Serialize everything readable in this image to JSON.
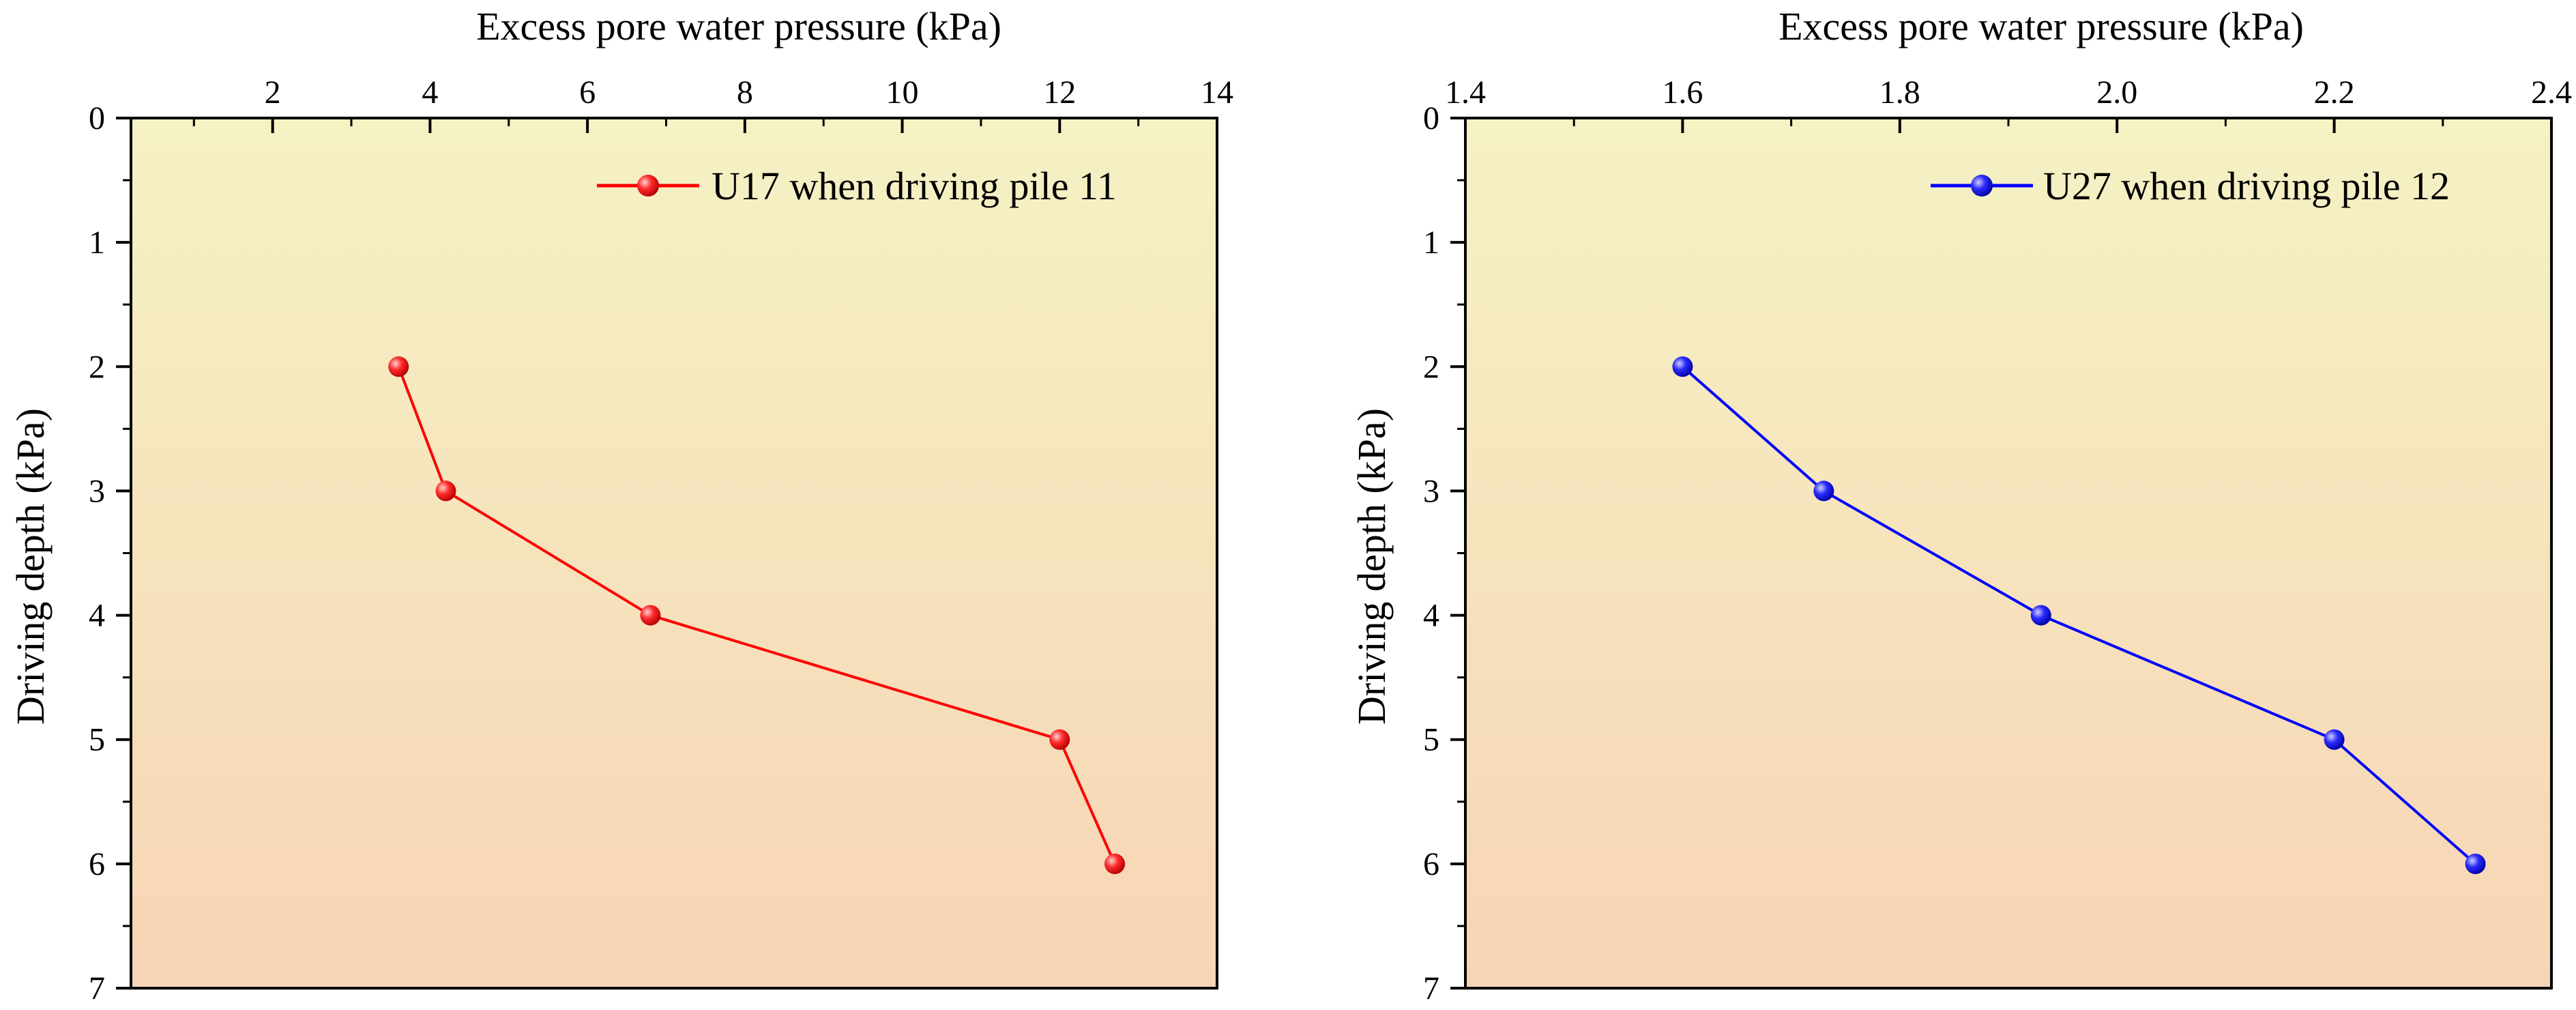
{
  "chart_data": [
    {
      "type": "line",
      "xlabel": "Excess pore water pressure (kPa)",
      "ylabel": "Driving depth (kPa)",
      "xlim": [
        0.2,
        14
      ],
      "ylim": [
        0,
        7
      ],
      "xticks": [
        2,
        4,
        6,
        8,
        10,
        12,
        14
      ],
      "xtick_labels": [
        "2",
        "4",
        "6",
        "8",
        "10",
        "12",
        "14"
      ],
      "yticks": [
        0,
        1,
        2,
        3,
        4,
        5,
        6,
        7
      ],
      "ytick_labels": [
        "0",
        "1",
        "2",
        "3",
        "4",
        "5",
        "6",
        "7"
      ],
      "x_axis_position": "top",
      "y_inverted": true,
      "grid": false,
      "legend_position": "top-right",
      "series": [
        {
          "name": "U17 when driving pile 11",
          "color": "#ff0000",
          "x": [
            3.6,
            4.2,
            6.8,
            12.0,
            12.7
          ],
          "y": [
            2,
            3,
            4,
            5,
            6
          ]
        }
      ]
    },
    {
      "type": "line",
      "xlabel": "Excess pore water pressure (kPa)",
      "ylabel": "Driving depth (kPa)",
      "xlim": [
        1.4,
        2.4
      ],
      "ylim": [
        0,
        7
      ],
      "xticks": [
        1.4,
        1.6,
        1.8,
        2.0,
        2.2,
        2.4
      ],
      "xtick_labels": [
        "1.4",
        "1.6",
        "1.8",
        "2.0",
        "2.2",
        "2.4"
      ],
      "yticks": [
        0,
        1,
        2,
        3,
        4,
        5,
        6,
        7
      ],
      "ytick_labels": [
        "0",
        "1",
        "2",
        "3",
        "4",
        "5",
        "6",
        "7"
      ],
      "x_axis_position": "top",
      "y_inverted": true,
      "grid": false,
      "legend_position": "top-right",
      "series": [
        {
          "name": "U27 when driving pile 12",
          "color": "#0000ff",
          "x": [
            1.6,
            1.73,
            1.93,
            2.2,
            2.33
          ],
          "y": [
            2,
            3,
            4,
            5,
            6
          ]
        }
      ]
    }
  ],
  "style": {
    "background_top": "#f5f2c4",
    "background_bottom": "#f7d4b5"
  }
}
